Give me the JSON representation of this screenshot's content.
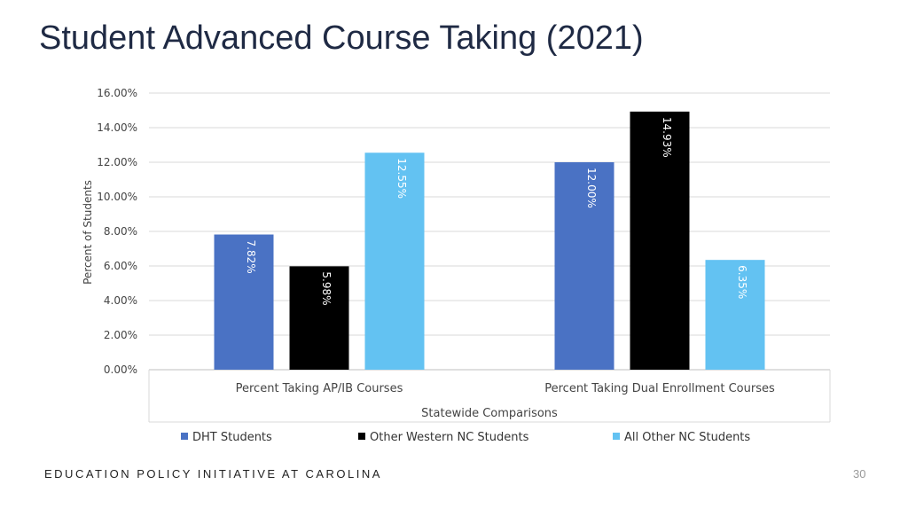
{
  "slide": {
    "title": "Student Advanced Course Taking (2021)",
    "footer": "EDUCATION POLICY INITIATIVE AT CAROLINA",
    "page_number": "30"
  },
  "colors": {
    "series": [
      "#4a72c4",
      "#000000",
      "#63c2f2"
    ],
    "bar_label_on_dark": "#ffffff",
    "bar_label_on_light": "#333333"
  },
  "chart_data": {
    "type": "bar",
    "categories": [
      "Percent Taking AP/IB Courses",
      "Percent Taking Dual Enrollment Courses"
    ],
    "series": [
      {
        "name": "DHT Students",
        "values": [
          7.82,
          12.0
        ],
        "labels": [
          "7.82%",
          "12.00%"
        ]
      },
      {
        "name": "Other Western NC Students",
        "values": [
          5.98,
          14.93
        ],
        "labels": [
          "5.98%",
          "14.93%"
        ]
      },
      {
        "name": "All Other NC Students",
        "values": [
          12.55,
          6.35
        ],
        "labels": [
          "12.55%",
          "6.35%"
        ]
      }
    ],
    "xlabel": "Statewide Comparisons",
    "ylabel": "Percent of Students",
    "ylim": [
      0,
      16
    ],
    "yticks": [
      "0.00%",
      "2.00%",
      "4.00%",
      "6.00%",
      "8.00%",
      "10.00%",
      "12.00%",
      "14.00%",
      "16.00%"
    ],
    "grid": true,
    "legend_position": "bottom"
  }
}
